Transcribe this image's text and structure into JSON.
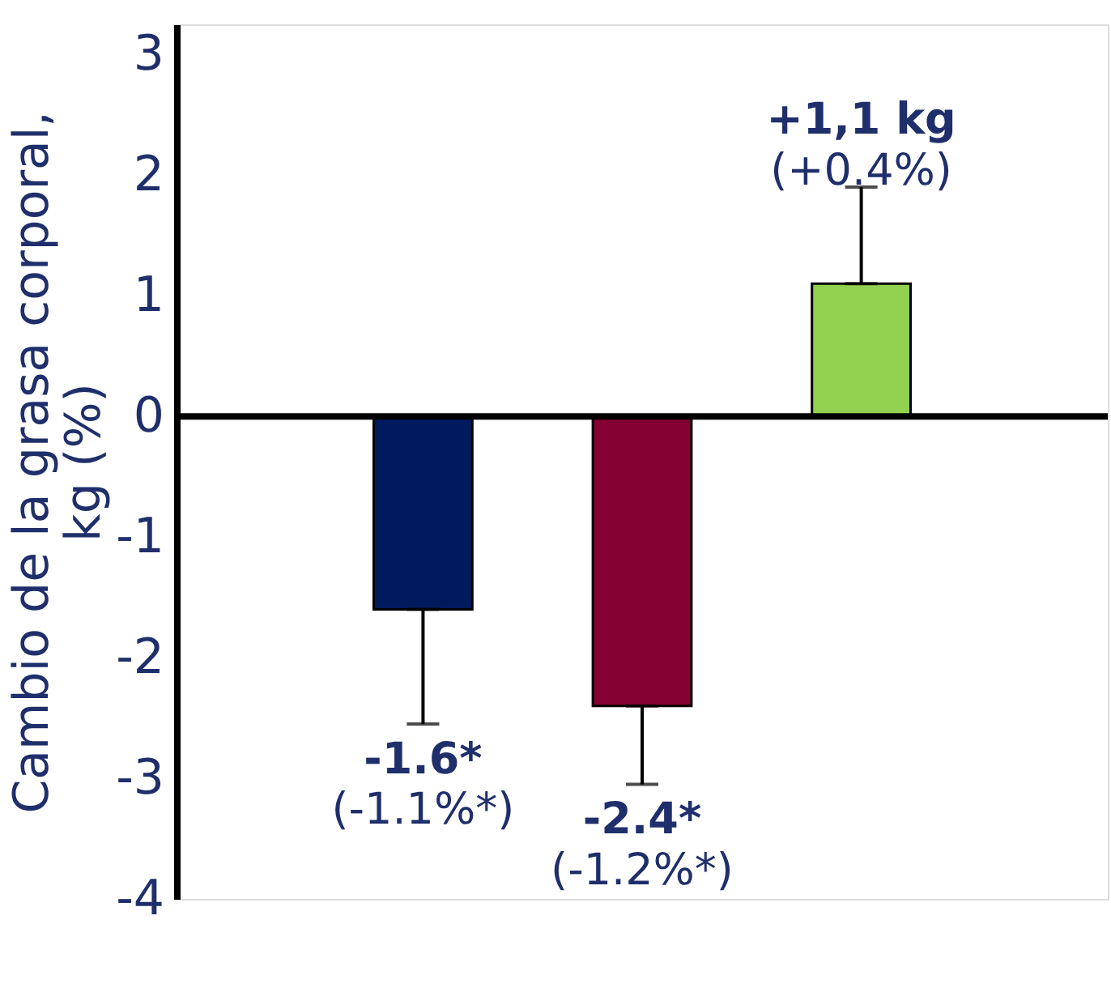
{
  "chart_data": {
    "type": "bar",
    "ylabel": "Cambio de la grasa corporal,\nkg (%)",
    "categories": [
      null,
      null,
      null
    ],
    "values": [
      -1.6,
      -2.4,
      1.1
    ],
    "colors": [
      "#001a5e",
      "#850033",
      "#92d050"
    ],
    "errors": [
      [
        -2.55,
        -1.6
      ],
      [
        -3.05,
        -2.4
      ],
      [
        1.1,
        1.9
      ]
    ],
    "ref_lines": [
      {
        "axis": "y",
        "value": 0,
        "color": "#000000"
      }
    ],
    "value_labels": [
      "-1.6*",
      "-2.4*",
      "+1,1 kg"
    ],
    "annotations": [
      "(-1.1%*)",
      "(-1.2%*)",
      "(+0.4%)"
    ],
    "ylim": [
      -4,
      3.25
    ],
    "yticks": [
      -4,
      -3,
      -2,
      -1,
      0,
      1,
      2,
      3
    ],
    "grid": false,
    "tick_labels": "y"
  }
}
